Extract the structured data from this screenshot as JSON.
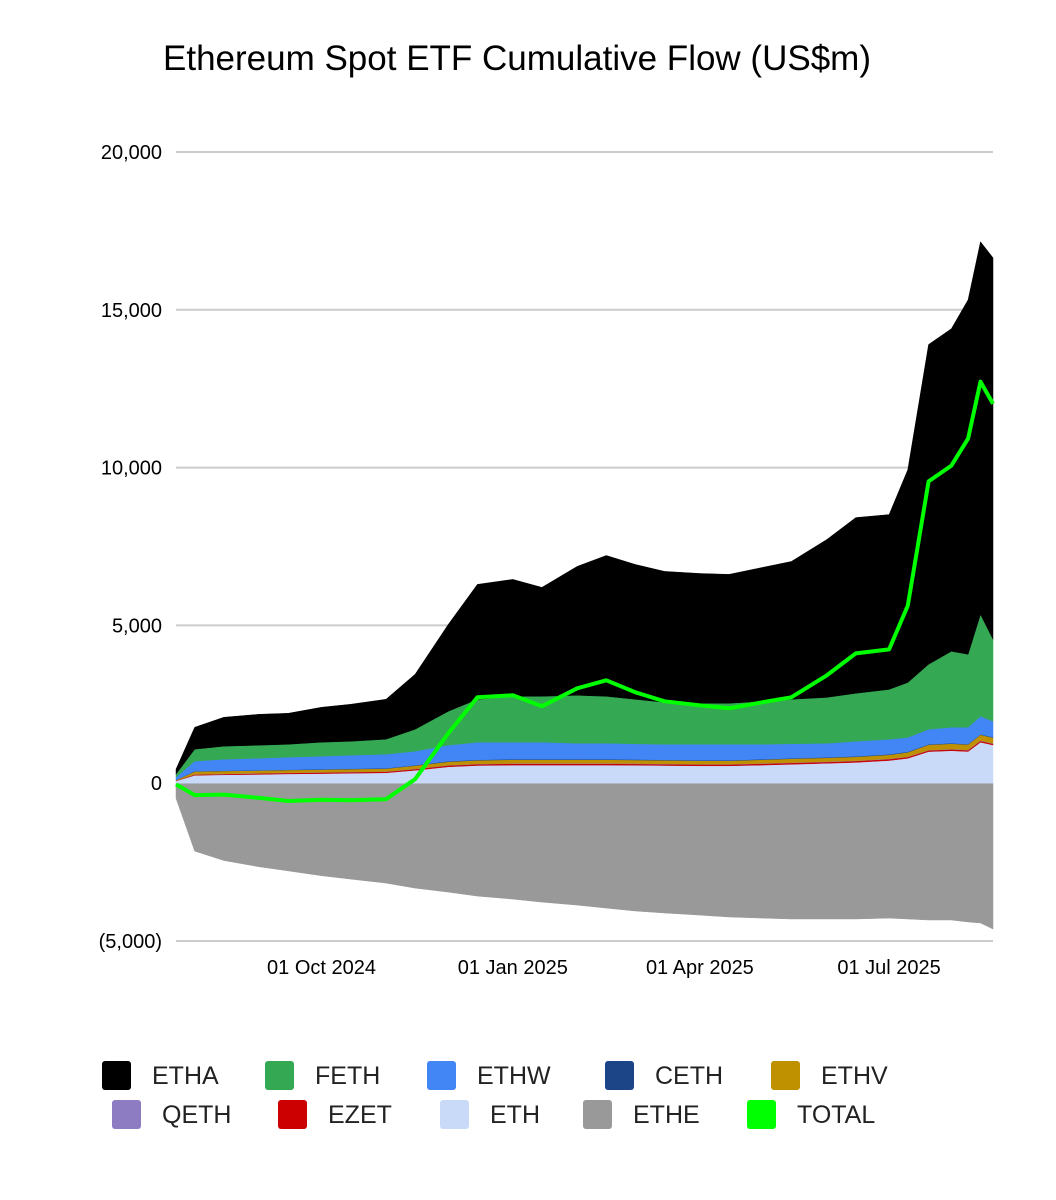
{
  "chart_data": {
    "type": "area",
    "stacked": true,
    "title": "Ethereum Spot ETF Cumulative Flow (US$m)",
    "xlabel": "",
    "ylabel": "",
    "ylim": [
      -5000,
      20000
    ],
    "xlim": [
      "2024-07-23",
      "2025-08-20"
    ],
    "y_ticks": [
      20000,
      15000,
      10000,
      5000,
      0,
      -5000
    ],
    "y_tick_labels": [
      "20,000",
      "15,000",
      "10,000",
      "5,000",
      "0",
      "(5,000)"
    ],
    "x_ticks": [
      "2024-10-01",
      "2025-01-01",
      "2025-04-01",
      "2025-07-01"
    ],
    "x_tick_labels": [
      "01 Oct 2024",
      "01 Jan 2025",
      "01 Apr 2025",
      "01 Jul 2025"
    ],
    "grid": "horizontal",
    "legend_position": "bottom",
    "x": [
      "2024-07-23",
      "2024-08-01",
      "2024-08-15",
      "2024-09-01",
      "2024-09-15",
      "2024-10-01",
      "2024-10-15",
      "2024-11-01",
      "2024-11-15",
      "2024-12-01",
      "2024-12-15",
      "2025-01-01",
      "2025-01-15",
      "2025-02-01",
      "2025-02-15",
      "2025-03-01",
      "2025-03-15",
      "2025-04-01",
      "2025-04-15",
      "2025-05-01",
      "2025-05-15",
      "2025-06-01",
      "2025-06-15",
      "2025-07-01",
      "2025-07-10",
      "2025-07-20",
      "2025-07-31",
      "2025-08-08",
      "2025-08-14",
      "2025-08-20"
    ],
    "series": [
      {
        "name": "ETHA",
        "color": "#000000",
        "type": "area",
        "values": [
          158,
          696,
          918,
          981,
          981,
          1107,
          1171,
          1265,
          1741,
          2753,
          3639,
          3702,
          3449,
          4083,
          4462,
          4272,
          4146,
          4114,
          4083,
          4241,
          4367,
          5000,
          5570,
          5538,
          6740,
          10134,
          10222,
          11235,
          11805,
          12089
        ]
      },
      {
        "name": "FETH",
        "color": "#34a853",
        "type": "area",
        "values": [
          95,
          380,
          411,
          412,
          411,
          443,
          443,
          475,
          696,
          1076,
          1361,
          1456,
          1456,
          1519,
          1488,
          1409,
          1330,
          1298,
          1298,
          1361,
          1409,
          1456,
          1519,
          1582,
          1741,
          2057,
          2406,
          2311,
          3228,
          2596
        ]
      },
      {
        "name": "ETHW",
        "color": "#4285f4",
        "type": "area",
        "values": [
          90,
          316,
          365,
          380,
          396,
          412,
          427,
          443,
          443,
          507,
          558,
          538,
          538,
          506,
          506,
          500,
          494,
          506,
          506,
          474,
          460,
          443,
          475,
          475,
          456,
          475,
          506,
          532,
          570,
          506
        ]
      },
      {
        "name": "CETH",
        "color": "#1c4587",
        "type": "area",
        "values": [
          3,
          10,
          10,
          10,
          10,
          11,
          11,
          11,
          12,
          15,
          15,
          15,
          15,
          15,
          15,
          15,
          15,
          15,
          15,
          15,
          15,
          15,
          15,
          15,
          15,
          15,
          15,
          15,
          15,
          15
        ]
      },
      {
        "name": "ETHV",
        "color": "#bf9000",
        "type": "area",
        "values": [
          15,
          90,
          88,
          85,
          85,
          88,
          90,
          92,
          103,
          112,
          113,
          117,
          117,
          117,
          117,
          112,
          112,
          110,
          110,
          117,
          122,
          123,
          125,
          128,
          140,
          169,
          171,
          170,
          186,
          181
        ]
      },
      {
        "name": "QETH",
        "color": "#8e7cc3",
        "type": "area",
        "values": [
          2,
          5,
          5,
          6,
          6,
          6,
          6,
          7,
          8,
          9,
          10,
          10,
          10,
          10,
          10,
          10,
          10,
          10,
          10,
          10,
          10,
          10,
          10,
          10,
          10,
          10,
          10,
          10,
          10,
          10
        ]
      },
      {
        "name": "EZET",
        "color": "#cc0000",
        "type": "area",
        "values": [
          10,
          25,
          27,
          30,
          31,
          33,
          34,
          35,
          37,
          40,
          42,
          43,
          43,
          43,
          43,
          43,
          43,
          43,
          43,
          43,
          43,
          43,
          43,
          43,
          40,
          40,
          40,
          40,
          40,
          40
        ]
      },
      {
        "name": "ETH",
        "color": "#c9daf8",
        "type": "area",
        "values": [
          70,
          250,
          265,
          280,
          295,
          305,
          318,
          330,
          410,
          520,
          560,
          575,
          575,
          575,
          575,
          570,
          560,
          550,
          550,
          575,
          600,
          630,
          660,
          720,
          790,
          1000,
          1030,
          1005,
          1300,
          1210
        ]
      },
      {
        "name": "ETHE",
        "color": "#999999",
        "type": "area",
        "values": [
          -480,
          -2150,
          -2450,
          -2650,
          -2780,
          -2930,
          -3040,
          -3165,
          -3323,
          -3450,
          -3576,
          -3671,
          -3766,
          -3861,
          -3956,
          -4051,
          -4114,
          -4178,
          -4241,
          -4273,
          -4304,
          -4304,
          -4304,
          -4273,
          -4304,
          -4336,
          -4336,
          -4399,
          -4431,
          -4621
        ]
      },
      {
        "name": "TOTAL",
        "color": "#00ff00",
        "type": "line",
        "values": [
          -37,
          -378,
          -361,
          -466,
          -565,
          -525,
          -540,
          -507,
          127,
          1582,
          2722,
          2785,
          2437,
          3007,
          3260,
          2880,
          2596,
          2468,
          2374,
          2563,
          2722,
          3416,
          4113,
          4238,
          5628,
          9564,
          10064,
          10919,
          12723,
          12026
        ]
      }
    ]
  }
}
